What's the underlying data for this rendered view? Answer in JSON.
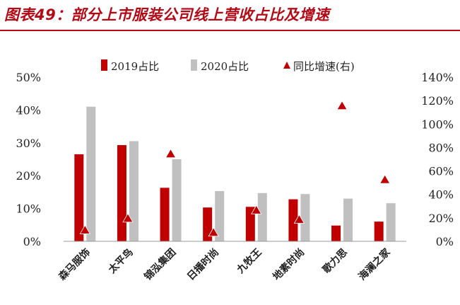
{
  "title": "图表49：部分上市服装公司线上营收占比及增速",
  "chart_data": {
    "type": "bar",
    "categories": [
      "森马服饰",
      "太平鸟",
      "锦泓集团",
      "日播时尚",
      "九牧王",
      "地素时尚",
      "歌力思",
      "海澜之家"
    ],
    "series": [
      {
        "name": "2019占比",
        "kind": "bar",
        "axis": "left",
        "color": "#c00000",
        "values": [
          26.5,
          29.3,
          16.3,
          10.3,
          10.5,
          12.8,
          4.8,
          6.0
        ]
      },
      {
        "name": "2020占比",
        "kind": "bar",
        "axis": "left",
        "color": "#c0c0c0",
        "values": [
          41.0,
          30.5,
          25.0,
          15.3,
          14.7,
          14.4,
          13.0,
          11.6
        ]
      },
      {
        "name": "同比增速(右)",
        "kind": "marker",
        "marker": "triangle",
        "axis": "right",
        "color": "#c00000",
        "values": [
          10,
          20,
          75,
          8,
          27,
          19,
          116,
          53
        ]
      }
    ],
    "left_axis": {
      "min": 0,
      "max": 50,
      "step": 10,
      "tick_labels": [
        "0%",
        "10%",
        "20%",
        "30%",
        "40%",
        "50%"
      ]
    },
    "right_axis": {
      "min": 0,
      "max": 140,
      "step": 20,
      "tick_labels": [
        "0%",
        "20%",
        "40%",
        "60%",
        "80%",
        "100%",
        "120%",
        "140%"
      ]
    },
    "legend_position": "top",
    "grid": false
  }
}
